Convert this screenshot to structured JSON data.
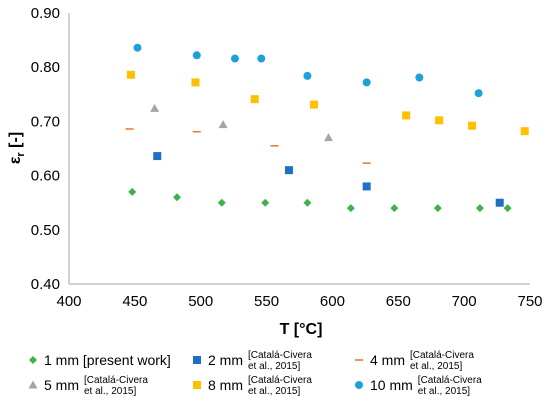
{
  "chart_data": {
    "type": "scatter",
    "xlabel": "T [°C]",
    "ylabel_main": "ε",
    "ylabel_sub": "r",
    "ylabel_unit": " [-]",
    "xlim": [
      400,
      750
    ],
    "ylim": [
      0.4,
      0.9
    ],
    "grid": false,
    "legend_position": "bottom",
    "x_ticks": [
      "400",
      "450",
      "500",
      "550",
      "600",
      "650",
      "700",
      "750"
    ],
    "y_ticks": [
      "0.40",
      "0.50",
      "0.60",
      "0.70",
      "0.80",
      "0.90"
    ],
    "series": [
      {
        "name": "1 mm [present work]",
        "name_cite_1": "",
        "name_cite_2": "",
        "marker": "diamond",
        "color": "#3cb44b",
        "points": [
          [
            448,
            0.57
          ],
          [
            482,
            0.56
          ],
          [
            516,
            0.55
          ],
          [
            549,
            0.55
          ],
          [
            581,
            0.55
          ],
          [
            614,
            0.54
          ],
          [
            647,
            0.54
          ],
          [
            680,
            0.54
          ],
          [
            712,
            0.54
          ],
          [
            733,
            0.54
          ]
        ]
      },
      {
        "name": "2 mm",
        "name_cite_1": "[Catalá-Civera",
        "name_cite_2": "et al., 2015]",
        "marker": "square",
        "color": "#1f6fc5",
        "points": [
          [
            467,
            0.636
          ],
          [
            567,
            0.61
          ],
          [
            626,
            0.58
          ],
          [
            727,
            0.55
          ]
        ]
      },
      {
        "name": "4 mm",
        "name_cite_1": "[Catalá-Civera",
        "name_cite_2": "et al., 2015]",
        "marker": "dash",
        "color": "#ed7d31",
        "points": [
          [
            446,
            0.686
          ],
          [
            497,
            0.681
          ],
          [
            556,
            0.655
          ],
          [
            626,
            0.623
          ]
        ]
      },
      {
        "name": "5 mm",
        "name_cite_1": "[Catalá-Civera",
        "name_cite_2": "et al.,  2015]",
        "marker": "triangle",
        "color": "#a5a5a5",
        "points": [
          [
            465,
            0.724
          ],
          [
            517,
            0.694
          ],
          [
            597,
            0.67
          ]
        ]
      },
      {
        "name": "8 mm",
        "name_cite_1": "[Catalá-Civera",
        "name_cite_2": "et al.,  2015]",
        "marker": "square",
        "color": "#ffc000",
        "points": [
          [
            447,
            0.786
          ],
          [
            496,
            0.772
          ],
          [
            541,
            0.741
          ],
          [
            586,
            0.731
          ],
          [
            656,
            0.711
          ],
          [
            681,
            0.702
          ],
          [
            706,
            0.692
          ],
          [
            746,
            0.682
          ]
        ]
      },
      {
        "name": "10 mm",
        "name_cite_1": "[Catalá-Civera",
        "name_cite_2": "et al.,  2015]",
        "marker": "circle",
        "color": "#1da1d8",
        "points": [
          [
            452,
            0.836
          ],
          [
            497,
            0.822
          ],
          [
            526,
            0.816
          ],
          [
            546,
            0.816
          ],
          [
            581,
            0.784
          ],
          [
            626,
            0.772
          ],
          [
            666,
            0.781
          ],
          [
            711,
            0.752
          ]
        ]
      }
    ]
  }
}
